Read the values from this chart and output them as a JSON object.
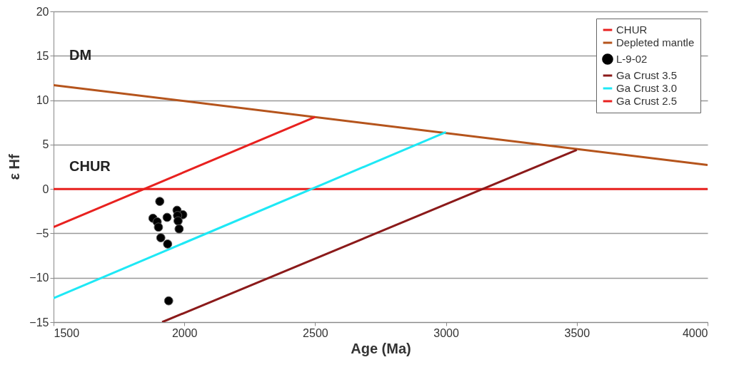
{
  "chart_data": {
    "type": "line",
    "xlabel": "Age (Ma)",
    "ylabel": "ε Hf",
    "xlim": [
      1500,
      4000
    ],
    "xticks": [
      1500,
      2000,
      2500,
      3000,
      3500,
      4000
    ],
    "ylim": [
      -15,
      20
    ],
    "yticks": [
      -15,
      -10,
      -5,
      0,
      5,
      10,
      15,
      20
    ],
    "grid": "y",
    "legend": "top right",
    "line_style": "solid",
    "annotations": [
      "DM",
      "CHUR"
    ],
    "series": [
      {
        "name": "CHUR",
        "color": "#e8211f",
        "x": [
          1500,
          4000
        ],
        "values": [
          0,
          0
        ]
      },
      {
        "name": "Depleted mantle",
        "color": "#b5541c",
        "x": [
          1500,
          4000
        ],
        "values": [
          11.7,
          2.7
        ]
      },
      {
        "name": "L-9-02",
        "type": "scatter",
        "marker": "circle",
        "color": "#000000",
        "x": [
          1906,
          1880,
          1896,
          1901,
          1934,
          1972,
          1994,
          1974,
          1976,
          1980,
          1910,
          1936,
          1940
        ],
        "values": [
          -1.4,
          -3.3,
          -3.7,
          -4.3,
          -3.2,
          -2.4,
          -2.9,
          -3.0,
          -3.6,
          -4.5,
          -5.5,
          -6.2,
          -12.6
        ]
      },
      {
        "name": "Ga Crust 3.5",
        "color": "#8b1a1a",
        "x": [
          1915,
          3500
        ],
        "values": [
          -15,
          4.4
        ]
      },
      {
        "name": "Ga Crust 3.0",
        "color": "#1ee8f5",
        "x": [
          1500,
          3000
        ],
        "values": [
          -12.3,
          6.4
        ]
      },
      {
        "name": "Ga Crust 2.5",
        "color": "#e8211f",
        "x": [
          1500,
          2500
        ],
        "values": [
          -4.3,
          8.1
        ]
      }
    ]
  }
}
